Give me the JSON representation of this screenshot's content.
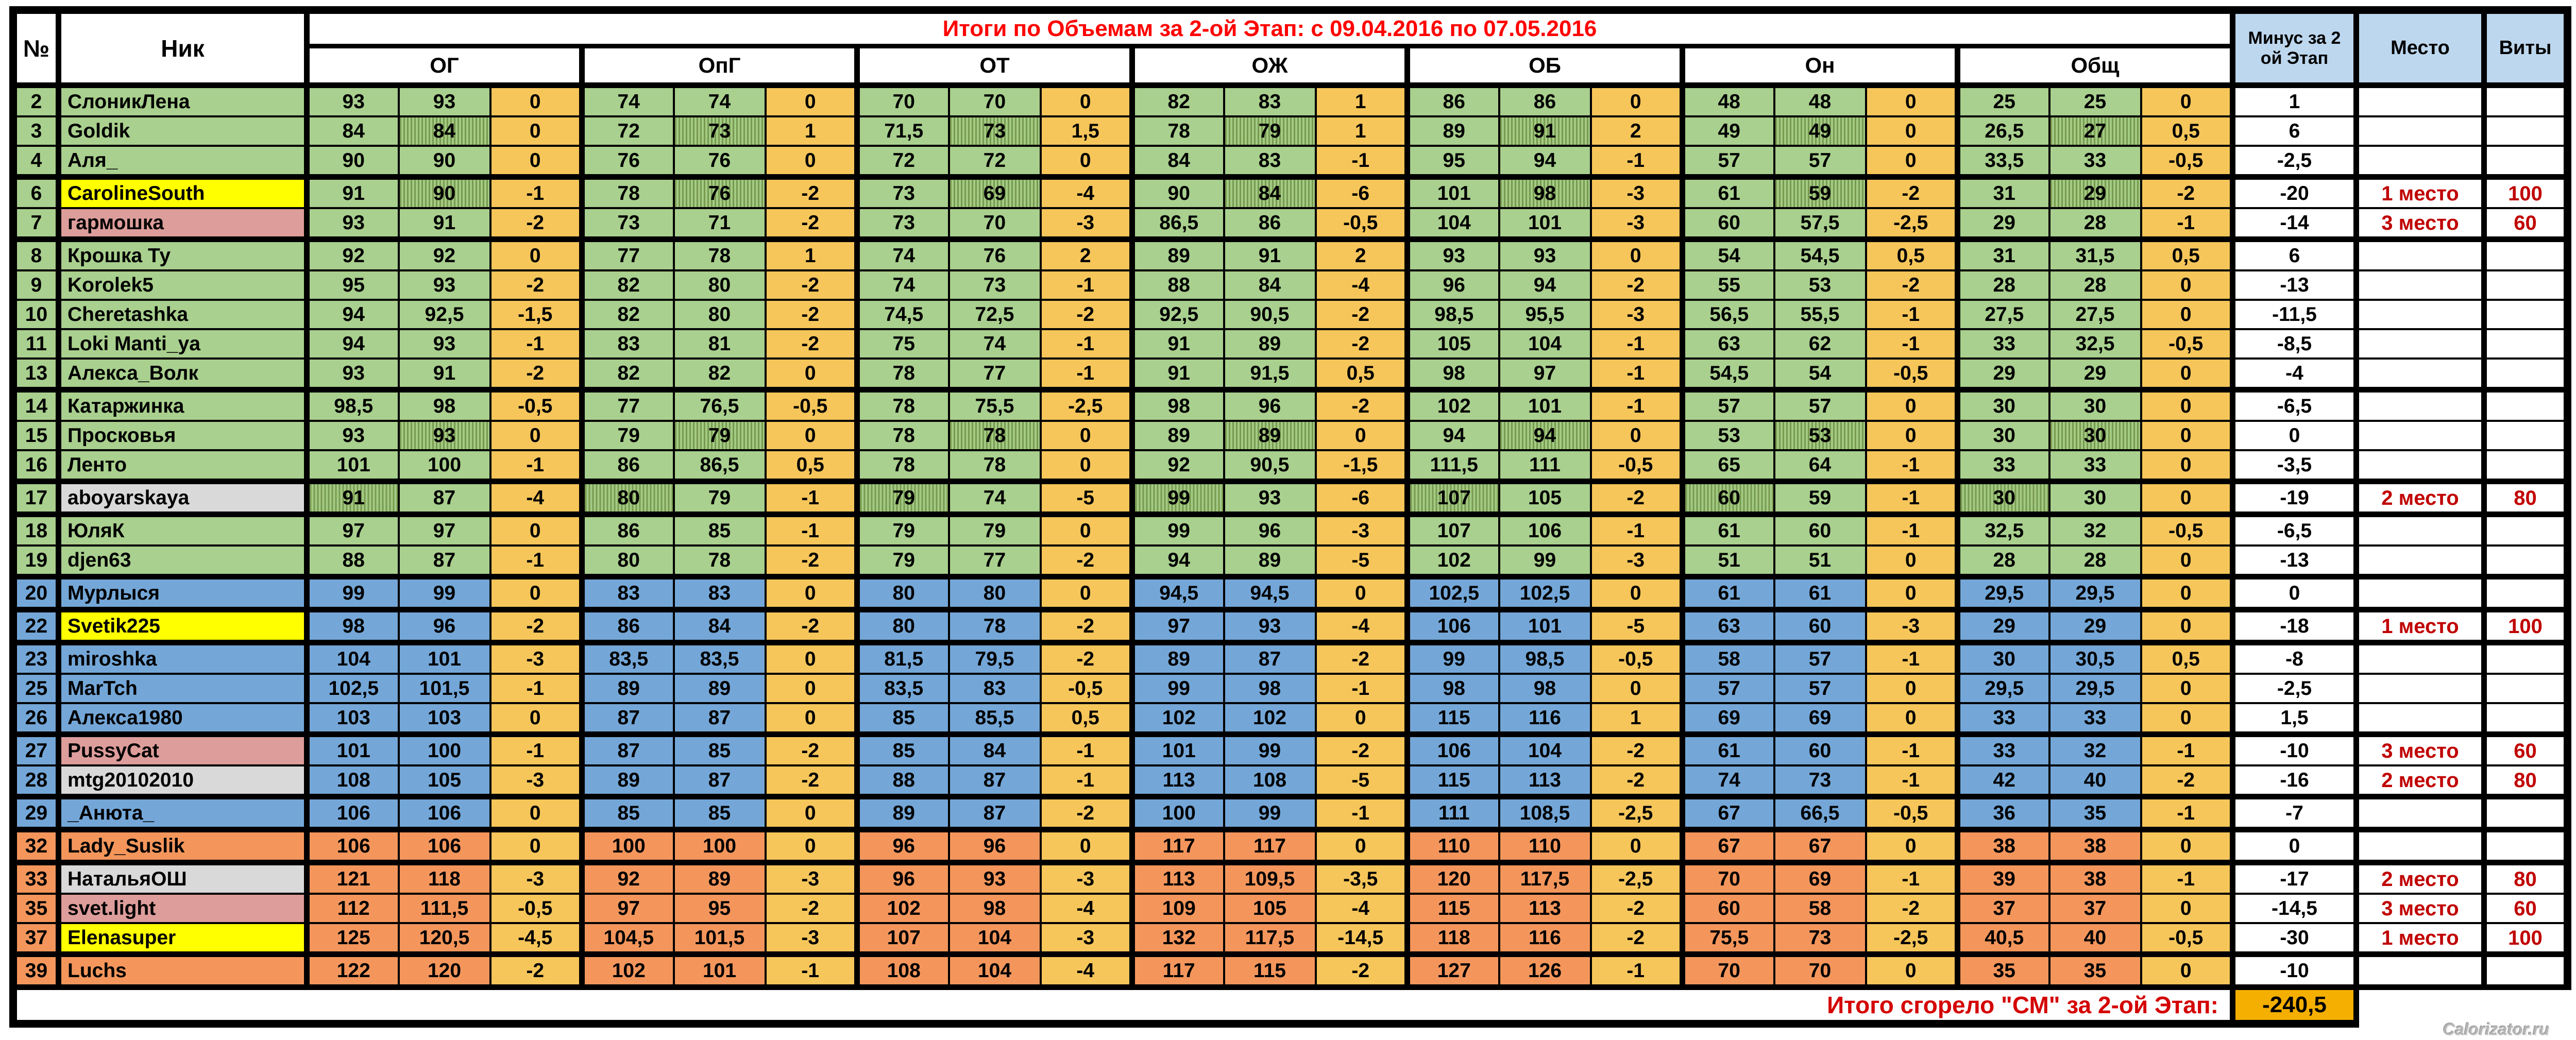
{
  "header": {
    "num": "№",
    "nick": "Ник",
    "title": "Итоги по Объемам за 2-ой Этап: с 09.04.2016 по 07.05.2016",
    "groups": [
      "ОГ",
      "ОпГ",
      "ОТ",
      "ОЖ",
      "ОБ",
      "Он",
      "Общ"
    ],
    "minus_line1": "Минус за 2",
    "minus_line2": "ой Этап",
    "place": "Место",
    "vity": "Виты"
  },
  "rows": [
    {
      "n": "2",
      "nick": "СлоникЛена",
      "band": "green",
      "nbg": null,
      "hatch": null,
      "v": [
        "93",
        "93",
        "0",
        "74",
        "74",
        "0",
        "70",
        "70",
        "0",
        "82",
        "83",
        "1",
        "86",
        "86",
        "0",
        "48",
        "48",
        "0",
        "25",
        "25",
        "0"
      ],
      "minus": "1",
      "rank": null,
      "place": "",
      "vity": "",
      "thick": false
    },
    {
      "n": "3",
      "nick": "Goldik",
      "band": "green",
      "nbg": null,
      "hatch": "c2",
      "v": [
        "84",
        "84",
        "0",
        "72",
        "73",
        "1",
        "71,5",
        "73",
        "1,5",
        "78",
        "79",
        "1",
        "89",
        "91",
        "2",
        "49",
        "49",
        "0",
        "26,5",
        "27",
        "0,5"
      ],
      "minus": "6",
      "rank": null,
      "place": "",
      "vity": "",
      "thick": false
    },
    {
      "n": "4",
      "nick": "Аля_",
      "band": "green",
      "nbg": null,
      "hatch": null,
      "v": [
        "90",
        "90",
        "0",
        "76",
        "76",
        "0",
        "72",
        "72",
        "0",
        "84",
        "83",
        "-1",
        "95",
        "94",
        "-1",
        "57",
        "57",
        "0",
        "33,5",
        "33",
        "-0,5"
      ],
      "minus": "-2,5",
      "rank": null,
      "place": "",
      "vity": "",
      "thick": true
    },
    {
      "n": "6",
      "nick": "CarolineSouth",
      "band": "green",
      "nbg": "yellow",
      "hatch": "c2",
      "v": [
        "91",
        "90",
        "-1",
        "78",
        "76",
        "-2",
        "73",
        "69",
        "-4",
        "90",
        "84",
        "-6",
        "101",
        "98",
        "-3",
        "61",
        "59",
        "-2",
        "31",
        "29",
        "-2"
      ],
      "minus": "-20",
      "rank": "gold",
      "place": "1 место",
      "vity": "100",
      "thick": false
    },
    {
      "n": "7",
      "nick": "гармошка",
      "band": "green",
      "nbg": "pink",
      "hatch": null,
      "v": [
        "93",
        "91",
        "-2",
        "73",
        "71",
        "-2",
        "73",
        "70",
        "-3",
        "86,5",
        "86",
        "-0,5",
        "104",
        "101",
        "-3",
        "60",
        "57,5",
        "-2,5",
        "29",
        "28",
        "-1"
      ],
      "minus": "-14",
      "rank": "bronze",
      "place": "3 место",
      "vity": "60",
      "thick": true
    },
    {
      "n": "8",
      "nick": "Крошка Ту",
      "band": "green",
      "nbg": null,
      "hatch": null,
      "v": [
        "92",
        "92",
        "0",
        "77",
        "78",
        "1",
        "74",
        "76",
        "2",
        "89",
        "91",
        "2",
        "93",
        "93",
        "0",
        "54",
        "54,5",
        "0,5",
        "31",
        "31,5",
        "0,5"
      ],
      "minus": "6",
      "rank": null,
      "place": "",
      "vity": "",
      "thick": false
    },
    {
      "n": "9",
      "nick": "Korolek5",
      "band": "green",
      "nbg": null,
      "hatch": null,
      "v": [
        "95",
        "93",
        "-2",
        "82",
        "80",
        "-2",
        "74",
        "73",
        "-1",
        "88",
        "84",
        "-4",
        "96",
        "94",
        "-2",
        "55",
        "53",
        "-2",
        "28",
        "28",
        "0"
      ],
      "minus": "-13",
      "rank": null,
      "place": "",
      "vity": "",
      "thick": false
    },
    {
      "n": "10",
      "nick": "Cheretashka",
      "band": "green",
      "nbg": null,
      "hatch": null,
      "v": [
        "94",
        "92,5",
        "-1,5",
        "82",
        "80",
        "-2",
        "74,5",
        "72,5",
        "-2",
        "92,5",
        "90,5",
        "-2",
        "98,5",
        "95,5",
        "-3",
        "56,5",
        "55,5",
        "-1",
        "27,5",
        "27,5",
        "0"
      ],
      "minus": "-11,5",
      "rank": null,
      "place": "",
      "vity": "",
      "thick": false
    },
    {
      "n": "11",
      "nick": "Loki Manti_ya",
      "band": "green",
      "nbg": null,
      "hatch": null,
      "v": [
        "94",
        "93",
        "-1",
        "83",
        "81",
        "-2",
        "75",
        "74",
        "-1",
        "91",
        "89",
        "-2",
        "105",
        "104",
        "-1",
        "63",
        "62",
        "-1",
        "33",
        "32,5",
        "-0,5"
      ],
      "minus": "-8,5",
      "rank": null,
      "place": "",
      "vity": "",
      "thick": false
    },
    {
      "n": "13",
      "nick": "Алекса_Волк",
      "band": "green",
      "nbg": null,
      "hatch": null,
      "v": [
        "93",
        "91",
        "-2",
        "82",
        "82",
        "0",
        "78",
        "77",
        "-1",
        "91",
        "91,5",
        "0,5",
        "98",
        "97",
        "-1",
        "54,5",
        "54",
        "-0,5",
        "29",
        "29",
        "0"
      ],
      "minus": "-4",
      "rank": null,
      "place": "",
      "vity": "",
      "thick": true
    },
    {
      "n": "14",
      "nick": "Катаржинка",
      "band": "green",
      "nbg": null,
      "hatch": null,
      "v": [
        "98,5",
        "98",
        "-0,5",
        "77",
        "76,5",
        "-0,5",
        "78",
        "75,5",
        "-2,5",
        "98",
        "96",
        "-2",
        "102",
        "101",
        "-1",
        "57",
        "57",
        "0",
        "30",
        "30",
        "0"
      ],
      "minus": "-6,5",
      "rank": null,
      "place": "",
      "vity": "",
      "thick": false
    },
    {
      "n": "15",
      "nick": "Просковья",
      "band": "green",
      "nbg": null,
      "hatch": "c2",
      "v": [
        "93",
        "93",
        "0",
        "79",
        "79",
        "0",
        "78",
        "78",
        "0",
        "89",
        "89",
        "0",
        "94",
        "94",
        "0",
        "53",
        "53",
        "0",
        "30",
        "30",
        "0"
      ],
      "minus": "0",
      "rank": null,
      "place": "",
      "vity": "",
      "thick": false
    },
    {
      "n": "16",
      "nick": "Ленто",
      "band": "green",
      "nbg": null,
      "hatch": null,
      "v": [
        "101",
        "100",
        "-1",
        "86",
        "86,5",
        "0,5",
        "78",
        "78",
        "0",
        "92",
        "90,5",
        "-1,5",
        "111,5",
        "111",
        "-0,5",
        "65",
        "64",
        "-1",
        "33",
        "33",
        "0"
      ],
      "minus": "-3,5",
      "rank": null,
      "place": "",
      "vity": "",
      "thick": true
    },
    {
      "n": "17",
      "nick": "aboyarskaya",
      "band": "green",
      "nbg": "gray",
      "hatch": "c1",
      "v": [
        "91",
        "87",
        "-4",
        "80",
        "79",
        "-1",
        "79",
        "74",
        "-5",
        "99",
        "93",
        "-6",
        "107",
        "105",
        "-2",
        "60",
        "59",
        "-1",
        "30",
        "30",
        "0"
      ],
      "minus": "-19",
      "rank": "silver",
      "place": "2 место",
      "vity": "80",
      "thick": true
    },
    {
      "n": "18",
      "nick": "ЮляК",
      "band": "green",
      "nbg": null,
      "hatch": null,
      "v": [
        "97",
        "97",
        "0",
        "86",
        "85",
        "-1",
        "79",
        "79",
        "0",
        "99",
        "96",
        "-3",
        "107",
        "106",
        "-1",
        "61",
        "60",
        "-1",
        "32,5",
        "32",
        "-0,5"
      ],
      "minus": "-6,5",
      "rank": null,
      "place": "",
      "vity": "",
      "thick": false
    },
    {
      "n": "19",
      "nick": "djen63",
      "band": "green",
      "nbg": null,
      "hatch": null,
      "v": [
        "88",
        "87",
        "-1",
        "80",
        "78",
        "-2",
        "79",
        "77",
        "-2",
        "94",
        "89",
        "-5",
        "102",
        "99",
        "-3",
        "51",
        "51",
        "0",
        "28",
        "28",
        "0"
      ],
      "minus": "-13",
      "rank": null,
      "place": "",
      "vity": "",
      "thick": true
    },
    {
      "n": "20",
      "nick": "Мурлыся",
      "band": "blue",
      "nbg": null,
      "hatch": null,
      "v": [
        "99",
        "99",
        "0",
        "83",
        "83",
        "0",
        "80",
        "80",
        "0",
        "94,5",
        "94,5",
        "0",
        "102,5",
        "102,5",
        "0",
        "61",
        "61",
        "0",
        "29,5",
        "29,5",
        "0"
      ],
      "minus": "0",
      "rank": null,
      "place": "",
      "vity": "",
      "thick": true
    },
    {
      "n": "22",
      "nick": "Svetik225",
      "band": "blue",
      "nbg": "yellow",
      "hatch": null,
      "v": [
        "98",
        "96",
        "-2",
        "86",
        "84",
        "-2",
        "80",
        "78",
        "-2",
        "97",
        "93",
        "-4",
        "106",
        "101",
        "-5",
        "63",
        "60",
        "-3",
        "29",
        "29",
        "0"
      ],
      "minus": "-18",
      "rank": "gold",
      "place": "1 место",
      "vity": "100",
      "thick": true
    },
    {
      "n": "23",
      "nick": "miroshka",
      "band": "blue",
      "nbg": null,
      "hatch": null,
      "v": [
        "104",
        "101",
        "-3",
        "83,5",
        "83,5",
        "0",
        "81,5",
        "79,5",
        "-2",
        "89",
        "87",
        "-2",
        "99",
        "98,5",
        "-0,5",
        "58",
        "57",
        "-1",
        "30",
        "30,5",
        "0,5"
      ],
      "minus": "-8",
      "rank": null,
      "place": "",
      "vity": "",
      "thick": false
    },
    {
      "n": "25",
      "nick": "MarTch",
      "band": "blue",
      "nbg": null,
      "hatch": null,
      "v": [
        "102,5",
        "101,5",
        "-1",
        "89",
        "89",
        "0",
        "83,5",
        "83",
        "-0,5",
        "99",
        "98",
        "-1",
        "98",
        "98",
        "0",
        "57",
        "57",
        "0",
        "29,5",
        "29,5",
        "0"
      ],
      "minus": "-2,5",
      "rank": null,
      "place": "",
      "vity": "",
      "thick": false
    },
    {
      "n": "26",
      "nick": "Алекса1980",
      "band": "blue",
      "nbg": null,
      "hatch": null,
      "v": [
        "103",
        "103",
        "0",
        "87",
        "87",
        "0",
        "85",
        "85,5",
        "0,5",
        "102",
        "102",
        "0",
        "115",
        "116",
        "1",
        "69",
        "69",
        "0",
        "33",
        "33",
        "0"
      ],
      "minus": "1,5",
      "rank": null,
      "place": "",
      "vity": "",
      "thick": true
    },
    {
      "n": "27",
      "nick": "PussyCat",
      "band": "blue",
      "nbg": "pink",
      "hatch": null,
      "v": [
        "101",
        "100",
        "-1",
        "87",
        "85",
        "-2",
        "85",
        "84",
        "-1",
        "101",
        "99",
        "-2",
        "106",
        "104",
        "-2",
        "61",
        "60",
        "-1",
        "33",
        "32",
        "-1"
      ],
      "minus": "-10",
      "rank": "bronze",
      "place": "3 место",
      "vity": "60",
      "thick": false
    },
    {
      "n": "28",
      "nick": "mtg20102010",
      "band": "blue",
      "nbg": "gray",
      "hatch": null,
      "v": [
        "108",
        "105",
        "-3",
        "89",
        "87",
        "-2",
        "88",
        "87",
        "-1",
        "113",
        "108",
        "-5",
        "115",
        "113",
        "-2",
        "74",
        "73",
        "-1",
        "42",
        "40",
        "-2"
      ],
      "minus": "-16",
      "rank": "silver",
      "place": "2 место",
      "vity": "80",
      "thick": true
    },
    {
      "n": "29",
      "nick": "_Анюта_",
      "band": "blue",
      "nbg": null,
      "hatch": null,
      "v": [
        "106",
        "106",
        "0",
        "85",
        "85",
        "0",
        "89",
        "87",
        "-2",
        "100",
        "99",
        "-1",
        "111",
        "108,5",
        "-2,5",
        "67",
        "66,5",
        "-0,5",
        "36",
        "35",
        "-1"
      ],
      "minus": "-7",
      "rank": null,
      "place": "",
      "vity": "",
      "thick": true
    },
    {
      "n": "32",
      "nick": "Lady_Suslik",
      "band": "orange",
      "nbg": null,
      "hatch": null,
      "v": [
        "106",
        "106",
        "0",
        "100",
        "100",
        "0",
        "96",
        "96",
        "0",
        "117",
        "117",
        "0",
        "110",
        "110",
        "0",
        "67",
        "67",
        "0",
        "38",
        "38",
        "0"
      ],
      "minus": "0",
      "rank": null,
      "place": "",
      "vity": "",
      "thick": true
    },
    {
      "n": "33",
      "nick": "НатальяОШ",
      "band": "orange",
      "nbg": "gray",
      "hatch": null,
      "v": [
        "121",
        "118",
        "-3",
        "92",
        "89",
        "-3",
        "96",
        "93",
        "-3",
        "113",
        "109,5",
        "-3,5",
        "120",
        "117,5",
        "-2,5",
        "70",
        "69",
        "-1",
        "39",
        "38",
        "-1"
      ],
      "minus": "-17",
      "rank": "silver",
      "place": "2 место",
      "vity": "80",
      "thick": false
    },
    {
      "n": "35",
      "nick": "svet.light",
      "band": "orange",
      "nbg": "pink",
      "hatch": null,
      "v": [
        "112",
        "111,5",
        "-0,5",
        "97",
        "95",
        "-2",
        "102",
        "98",
        "-4",
        "109",
        "105",
        "-4",
        "115",
        "113",
        "-2",
        "60",
        "58",
        "-2",
        "37",
        "37",
        "0"
      ],
      "minus": "-14,5",
      "rank": "bronze",
      "place": "3 место",
      "vity": "60",
      "thick": false
    },
    {
      "n": "37",
      "nick": "Elenasuper",
      "band": "orange",
      "nbg": "yellow",
      "hatch": null,
      "v": [
        "125",
        "120,5",
        "-4,5",
        "104,5",
        "101,5",
        "-3",
        "107",
        "104",
        "-3",
        "132",
        "117,5",
        "-14,5",
        "118",
        "116",
        "-2",
        "75,5",
        "73",
        "-2,5",
        "40,5",
        "40",
        "-0,5"
      ],
      "minus": "-30",
      "rank": "gold",
      "place": "1 место",
      "vity": "100",
      "thick": true
    },
    {
      "n": "39",
      "nick": "Luchs",
      "band": "orange",
      "nbg": null,
      "hatch": null,
      "v": [
        "122",
        "120",
        "-2",
        "102",
        "101",
        "-1",
        "108",
        "104",
        "-4",
        "117",
        "115",
        "-2",
        "127",
        "126",
        "-1",
        "70",
        "70",
        "0",
        "35",
        "35",
        "0"
      ],
      "minus": "-10",
      "rank": null,
      "place": "",
      "vity": "",
      "thick": true
    }
  ],
  "footer": {
    "label": "Итого сгорело \"СМ\" за 2-ой Этап:",
    "value": "-240,5"
  },
  "watermark": "Calorizator.ru",
  "colors": {
    "band_green": "#A9D08E",
    "band_blue": "#74A7D8",
    "band_orange": "#F4965C",
    "delta_col": "#F6C65A",
    "gold": "#FFFF00",
    "silver": "#D9D9D9",
    "bronze": "#DD9D9B",
    "header_blue": "#BDD7EE",
    "total_orange": "#F5AF00",
    "title_red": "#FF0000",
    "rank_red": "#C00000"
  }
}
